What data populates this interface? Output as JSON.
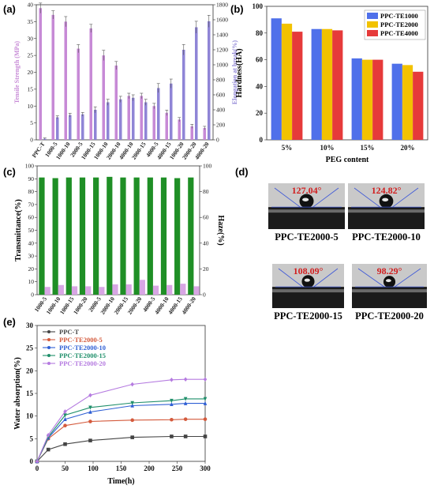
{
  "panels": {
    "a": "(a)",
    "b": "(b)",
    "c": "(c)",
    "d": "(d)",
    "e": "(e)"
  },
  "colors": {
    "tensile": "#c78ad6",
    "elong": "#8f85d6",
    "te1000": "#4f70ea",
    "te2000": "#f2c200",
    "te4000": "#e63a3a",
    "trans": "#1f8f26",
    "haze": "#d8a6e4",
    "ppct": "#444444",
    "te5": "#d45a3c",
    "te10": "#2f5fd4",
    "te15": "#1f8f6a",
    "te20": "#b57be0"
  },
  "chart_data": [
    {
      "id": "a",
      "type": "bar",
      "categories": [
        "PPC-T",
        "1000-5",
        "1000-10",
        "2000-5",
        "1000-15",
        "1000-10",
        "2000-10",
        "4000-10",
        "2000-15",
        "4000-5",
        "4000-15",
        "1000-20",
        "2000-20",
        "4000-20"
      ],
      "series": [
        {
          "name": "Tensile Strength",
          "values": [
            39,
            37,
            35,
            27,
            33,
            25,
            22,
            13,
            13,
            10,
            8,
            6,
            4,
            3.5
          ],
          "err": [
            1.5,
            1.2,
            1.5,
            1.2,
            1.2,
            1.5,
            1.2,
            0.8,
            0.8,
            0.8,
            0.8,
            0.6,
            0.6,
            0.5
          ]
        },
        {
          "name": "Elongation at break",
          "values": [
            15,
            300,
            330,
            340,
            400,
            500,
            540,
            560,
            500,
            690,
            750,
            1200,
            1500,
            1580
          ],
          "err": [
            10,
            20,
            25,
            25,
            40,
            40,
            40,
            40,
            40,
            60,
            60,
            70,
            80,
            80
          ]
        }
      ],
      "ylabel": "Tensile Strength (MPa)",
      "y2label": "Elongation at break(%)",
      "ylim": [
        0,
        40
      ],
      "y2lim": [
        0,
        1800
      ],
      "yticks": [
        0,
        5,
        10,
        15,
        20,
        25,
        30,
        35,
        40
      ],
      "y2ticks": [
        0,
        200,
        400,
        600,
        800,
        1000,
        1200,
        1400,
        1600,
        1800
      ]
    },
    {
      "id": "b",
      "type": "bar",
      "categories": [
        "5%",
        "10%",
        "15%",
        "20%"
      ],
      "series": [
        {
          "name": "PPC-TE1000",
          "values": [
            91,
            83,
            61,
            57
          ]
        },
        {
          "name": "PPC-TE2000",
          "values": [
            87,
            83,
            60,
            56
          ]
        },
        {
          "name": "PPC-TE4000",
          "values": [
            81,
            82,
            60,
            51
          ]
        }
      ],
      "xlabel": "PEG content",
      "ylabel": "Hardness(HA)",
      "ylim": [
        0,
        100
      ],
      "yticks": [
        0,
        20,
        40,
        60,
        80,
        100
      ],
      "legend": "top-right"
    },
    {
      "id": "c",
      "type": "bar",
      "categories": [
        "1000-5",
        "1000-10",
        "1000-15",
        "1000-20",
        "2000-5",
        "2000-10",
        "2000-15",
        "2000-20",
        "4000-5",
        "4000-10",
        "4000-15",
        "4000-20"
      ],
      "series": [
        {
          "name": "Transmittance",
          "values": [
            91,
            90.5,
            91,
            91,
            91,
            91.5,
            91,
            91,
            91,
            91,
            90.5,
            91
          ]
        },
        {
          "name": "Haze",
          "values": [
            6,
            7.5,
            6.5,
            6.5,
            6,
            8,
            8,
            11.5,
            7,
            7.5,
            8.5,
            6.5
          ]
        }
      ],
      "ylabel": "Transmittance(%)",
      "y2label": "Haze(%)",
      "ylim": [
        0,
        100
      ],
      "y2lim": [
        0,
        100
      ],
      "yticks": [
        0,
        10,
        20,
        30,
        40,
        50,
        60,
        70,
        80,
        90,
        100
      ],
      "y2ticks": [
        0,
        20,
        40,
        60,
        80,
        100
      ]
    },
    {
      "id": "e",
      "type": "line",
      "x": [
        0,
        20,
        50,
        95,
        170,
        240,
        265,
        300
      ],
      "series": [
        {
          "name": "PPC-T",
          "values": [
            0,
            2.6,
            3.8,
            4.6,
            5.3,
            5.5,
            5.5,
            5.5
          ]
        },
        {
          "name": "PPC-TE2000-5",
          "values": [
            0,
            5,
            7.9,
            8.8,
            9.1,
            9.2,
            9.3,
            9.3
          ]
        },
        {
          "name": "PPC-TE2000-10",
          "values": [
            0,
            5.2,
            9.3,
            10.9,
            12.3,
            12.6,
            12.8,
            12.8
          ]
        },
        {
          "name": "PPC-TE2000-15",
          "values": [
            0,
            5.4,
            10.2,
            11.9,
            12.9,
            13.4,
            13.8,
            13.8
          ]
        },
        {
          "name": "PPC-TE2000-20",
          "values": [
            0,
            5.8,
            11,
            14.6,
            17,
            18,
            18.1,
            18.1
          ]
        }
      ],
      "xlabel": "Time(h)",
      "ylabel": "Water absorption(%)",
      "xlim": [
        0,
        300
      ],
      "ylim": [
        0,
        30
      ],
      "xticks": [
        0,
        50,
        100,
        150,
        200,
        250,
        300
      ],
      "yticks": [
        0,
        5,
        10,
        15,
        20,
        25,
        30
      ],
      "legend": "top-left"
    }
  ],
  "contact_angles": [
    {
      "angle": "127.04°",
      "sample": "PPC-TE2000-5"
    },
    {
      "angle": "124.82°",
      "sample": "PPC-TE2000-10"
    },
    {
      "angle": "108.09°",
      "sample": "PPC-TE2000-15"
    },
    {
      "angle": "98.29°",
      "sample": "PPC-TE2000-20"
    }
  ]
}
